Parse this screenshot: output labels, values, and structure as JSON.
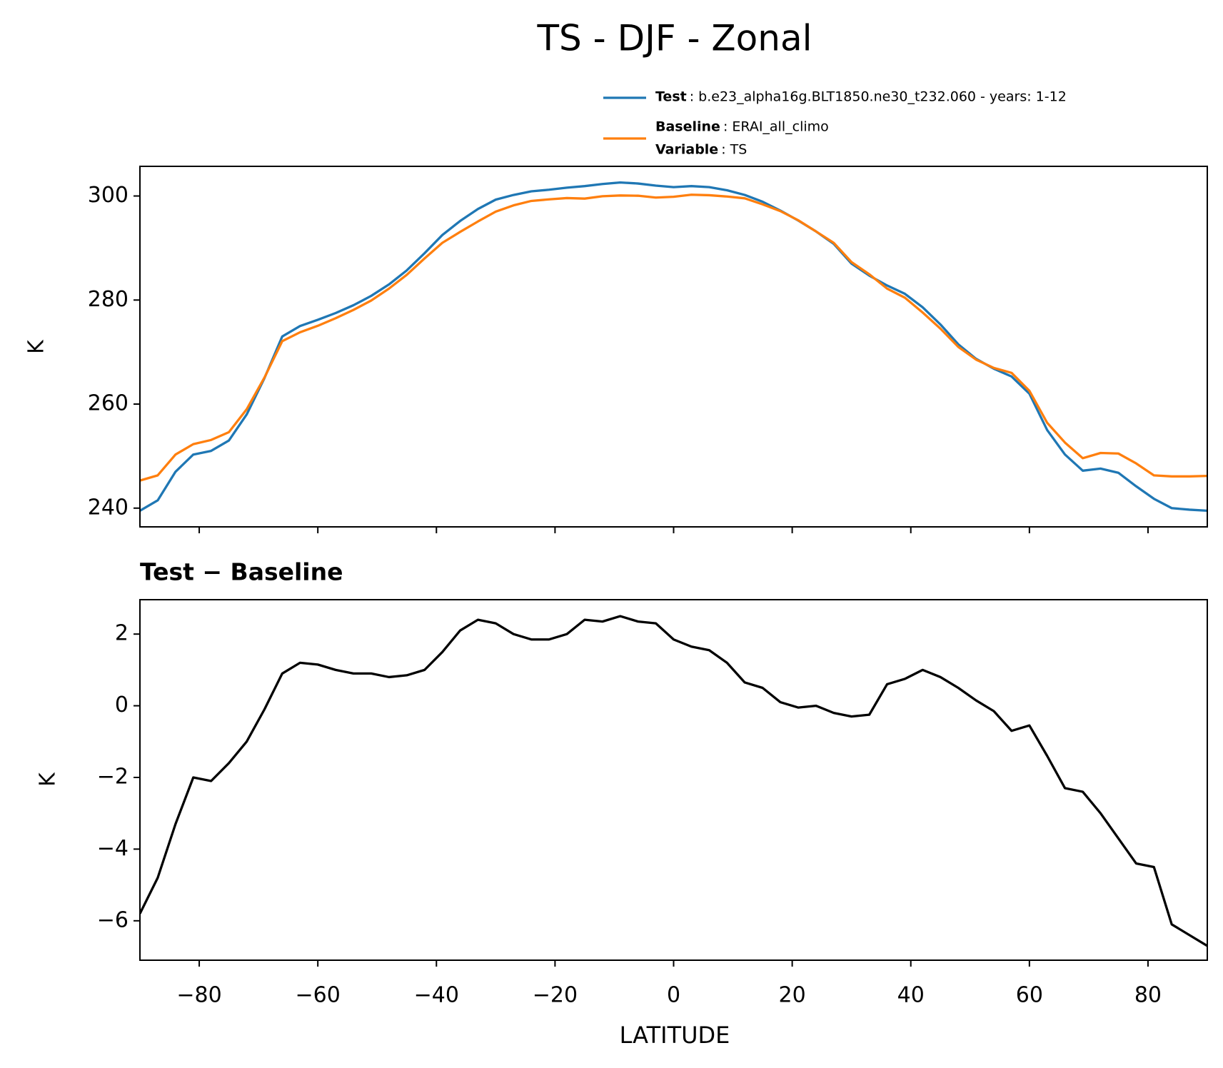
{
  "chart_data": [
    {
      "type": "line",
      "title": "TS - DJF - Zonal",
      "ylabel": "K",
      "x": [
        -90,
        -87,
        -84,
        -81,
        -78,
        -75,
        -72,
        -69,
        -66,
        -63,
        -60,
        -57,
        -54,
        -51,
        -48,
        -45,
        -42,
        -39,
        -36,
        -33,
        -30,
        -27,
        -24,
        -21,
        -18,
        -15,
        -12,
        -9,
        -6,
        -3,
        0,
        3,
        6,
        9,
        12,
        15,
        18,
        21,
        24,
        27,
        30,
        33,
        36,
        39,
        42,
        45,
        48,
        51,
        54,
        57,
        60,
        63,
        66,
        69,
        72,
        75,
        78,
        81,
        84,
        87,
        90
      ],
      "series": [
        {
          "name": "Test",
          "description": ": b.e23_alpha16g.BLT1850.ne30_t232.060 - years: 1-12",
          "color": "#1f77b4",
          "values": [
            239.5,
            241.5,
            247,
            250.3,
            251,
            253,
            258,
            265,
            273,
            275,
            276.2,
            277.5,
            279,
            280.8,
            283,
            285.7,
            289,
            292.5,
            295.2,
            297.5,
            299.3,
            300.2,
            300.9,
            301.2,
            301.6,
            301.9,
            302.3,
            302.6,
            302.4,
            302.0,
            301.7,
            301.9,
            301.7,
            301.1,
            300.2,
            298.9,
            297.2,
            295.3,
            293.2,
            290.8,
            287,
            284.7,
            282.8,
            281.2,
            278.6,
            275.3,
            271.5,
            268.7,
            266.8,
            265.3,
            262,
            255,
            250.3,
            247.2,
            247.6,
            246.8,
            244.2,
            241.8,
            240,
            239.7,
            239.5
          ]
        },
        {
          "name": "Baseline",
          "description": ": ERAI_all_climo",
          "color": "#ff7f0e",
          "values": [
            245.3,
            246.3,
            250.3,
            252.3,
            253.1,
            254.6,
            259.0,
            265.1,
            272.1,
            273.8,
            275.05,
            276.5,
            278.1,
            279.9,
            282.2,
            284.85,
            288.0,
            291.0,
            293.1,
            295.1,
            297.0,
            298.2,
            299.05,
            299.35,
            299.6,
            299.5,
            299.95,
            300.1,
            300.05,
            299.7,
            299.85,
            300.25,
            300.15,
            299.9,
            299.55,
            298.4,
            297.1,
            295.35,
            293.2,
            291.0,
            287.3,
            284.95,
            282.2,
            280.45,
            277.6,
            274.5,
            271.0,
            268.55,
            266.95,
            266.0,
            262.55,
            256.4,
            252.6,
            249.6,
            250.6,
            250.5,
            248.6,
            246.3,
            246.1,
            246.1,
            246.2
          ]
        }
      ],
      "legend_note": {
        "name": "Variable",
        "description": ": TS"
      },
      "xlim": [
        -90,
        90
      ],
      "ylim": [
        236.4,
        305.7
      ],
      "yticks": [
        240,
        260,
        280,
        300
      ]
    },
    {
      "type": "line",
      "title": "Test − Baseline",
      "ylabel": "K",
      "xlabel": "LATITUDE",
      "x": [
        -90,
        -87,
        -84,
        -81,
        -78,
        -75,
        -72,
        -69,
        -66,
        -63,
        -60,
        -57,
        -54,
        -51,
        -48,
        -45,
        -42,
        -39,
        -36,
        -33,
        -30,
        -27,
        -24,
        -21,
        -18,
        -15,
        -12,
        -9,
        -6,
        -3,
        0,
        3,
        6,
        9,
        12,
        15,
        18,
        21,
        24,
        27,
        30,
        33,
        36,
        39,
        42,
        45,
        48,
        51,
        54,
        57,
        60,
        63,
        66,
        69,
        72,
        75,
        78,
        81,
        84,
        87,
        90
      ],
      "series": [
        {
          "color": "#000000",
          "values": [
            -5.8,
            -4.8,
            -3.3,
            -2.0,
            -2.1,
            -1.6,
            -1.0,
            -0.1,
            0.9,
            1.2,
            1.15,
            1.0,
            0.9,
            0.9,
            0.8,
            0.85,
            1.0,
            1.5,
            2.1,
            2.4,
            2.3,
            2.0,
            1.85,
            1.85,
            2.0,
            2.4,
            2.35,
            2.5,
            2.35,
            2.3,
            1.85,
            1.65,
            1.55,
            1.2,
            0.65,
            0.5,
            0.1,
            -0.05,
            0.0,
            -0.2,
            -0.3,
            -0.25,
            0.6,
            0.75,
            1.0,
            0.8,
            0.5,
            0.15,
            -0.15,
            -0.7,
            -0.55,
            -1.4,
            -2.3,
            -2.4,
            -3.0,
            -3.7,
            -4.4,
            -4.5,
            -6.1,
            -6.4,
            -6.7
          ]
        }
      ],
      "xlim": [
        -90,
        90
      ],
      "ylim": [
        -7.1,
        2.96
      ],
      "yticks": [
        {
          "value": -6,
          "label": "−6"
        },
        {
          "value": -4,
          "label": "−4"
        },
        {
          "value": -2,
          "label": "−2"
        },
        0,
        2
      ],
      "xticks": [
        {
          "value": -80,
          "label": "−80"
        },
        {
          "value": -60,
          "label": "−60"
        },
        {
          "value": -40,
          "label": "−40"
        },
        {
          "value": -20,
          "label": "−20"
        },
        0,
        20,
        40,
        60,
        80
      ]
    }
  ]
}
